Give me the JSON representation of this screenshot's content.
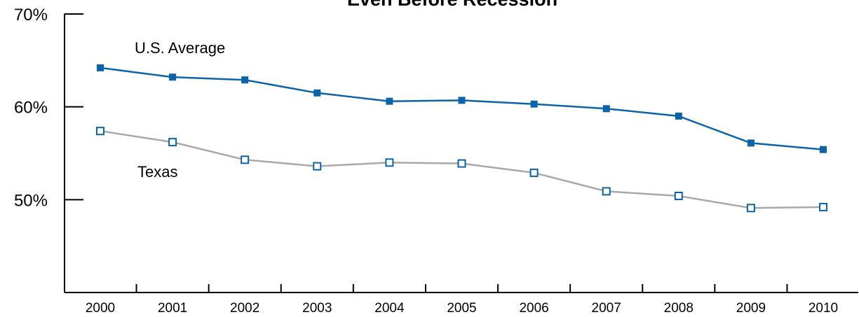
{
  "chart_data": {
    "type": "line",
    "title": "Even Before Recession",
    "xlabel": "",
    "ylabel": "",
    "x": [
      "2000",
      "2001",
      "2002",
      "2003",
      "2004",
      "2005",
      "2006",
      "2007",
      "2008",
      "2009",
      "2010"
    ],
    "yticks": [
      "50%",
      "60%",
      "70%"
    ],
    "ylim": [
      40,
      70
    ],
    "grid": false,
    "series": [
      {
        "name": "U.S. Average",
        "values": [
          64.2,
          63.2,
          62.9,
          61.5,
          60.6,
          60.7,
          60.3,
          59.8,
          59.0,
          56.1,
          55.4
        ],
        "line_color": "#0b63a8",
        "marker": "filled-square",
        "marker_color": "#0b63a8"
      },
      {
        "name": "Texas",
        "values": [
          57.4,
          56.2,
          54.3,
          53.6,
          54.0,
          53.9,
          52.9,
          50.9,
          50.4,
          49.1,
          49.2
        ],
        "line_color": "#a8a8a8",
        "marker": "hollow-square",
        "marker_color": "#0b63a8"
      }
    ]
  }
}
